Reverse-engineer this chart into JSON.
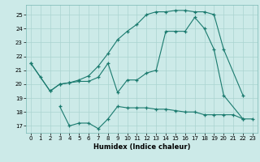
{
  "xlabel": "Humidex (Indice chaleur)",
  "bg_color": "#cceae8",
  "grid_color": "#aad4d0",
  "line_color": "#1a7a6e",
  "xlim": [
    -0.5,
    23.5
  ],
  "ylim": [
    16.5,
    25.7
  ],
  "yticks": [
    17,
    18,
    19,
    20,
    21,
    22,
    23,
    24,
    25
  ],
  "xticks": [
    0,
    1,
    2,
    3,
    4,
    5,
    6,
    7,
    8,
    9,
    10,
    11,
    12,
    13,
    14,
    15,
    16,
    17,
    18,
    19,
    20,
    21,
    22,
    23
  ],
  "line1_x": [
    0,
    1,
    2,
    3,
    4,
    5,
    6,
    7,
    8,
    9,
    10,
    11,
    12,
    13,
    14,
    15,
    16,
    17,
    18,
    19,
    20,
    22
  ],
  "line1_y": [
    21.5,
    20.5,
    19.5,
    20.0,
    20.1,
    20.2,
    20.2,
    20.5,
    21.5,
    19.4,
    20.3,
    20.3,
    20.8,
    21.0,
    23.8,
    23.8,
    23.8,
    24.8,
    24.0,
    22.5,
    19.2,
    17.5
  ],
  "line2_x": [
    0,
    2,
    3,
    4,
    5,
    6,
    7,
    8,
    9,
    10,
    11,
    12,
    13,
    14,
    15,
    16,
    17,
    18,
    19,
    20,
    22
  ],
  "line2_y": [
    21.5,
    19.5,
    20.0,
    20.1,
    20.3,
    20.6,
    21.3,
    22.2,
    23.2,
    23.8,
    24.3,
    25.0,
    25.2,
    25.2,
    25.3,
    25.3,
    25.2,
    25.2,
    25.0,
    22.5,
    19.2
  ],
  "line3_x": [
    3,
    4,
    5,
    6,
    7,
    8,
    9,
    10,
    11,
    12,
    13,
    14,
    15,
    16,
    17,
    18,
    19,
    20,
    21,
    22,
    23
  ],
  "line3_y": [
    18.4,
    17.0,
    17.2,
    17.2,
    16.8,
    17.5,
    18.4,
    18.3,
    18.3,
    18.3,
    18.2,
    18.2,
    18.1,
    18.0,
    18.0,
    17.8,
    17.8,
    17.8,
    17.8,
    17.5,
    17.5
  ]
}
